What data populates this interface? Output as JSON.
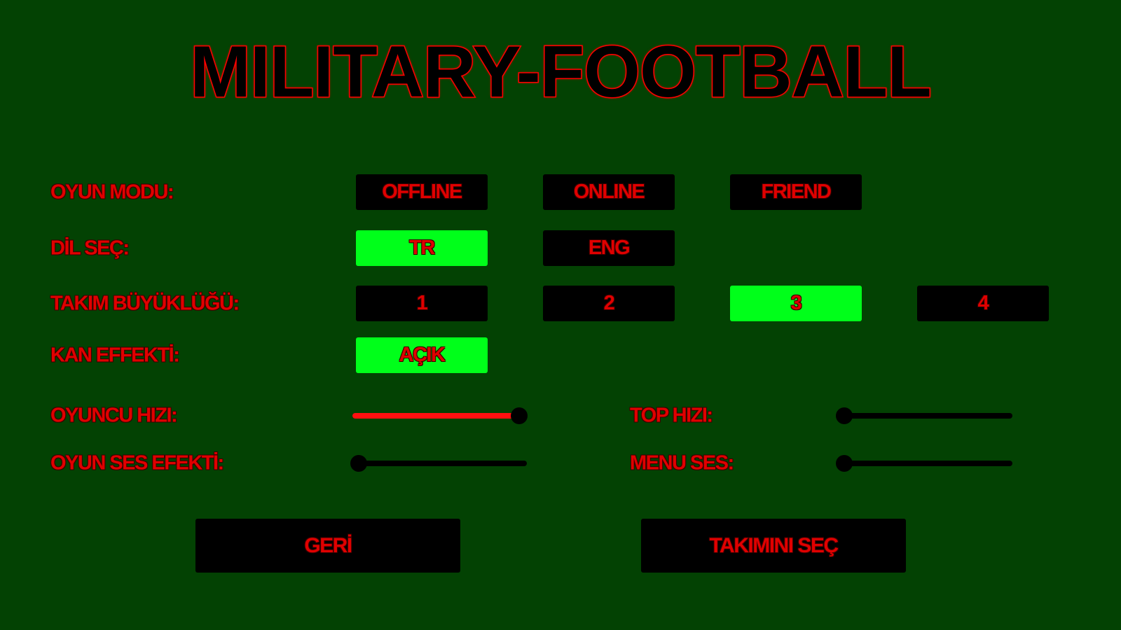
{
  "title": "MILITARY-FOOTBALL",
  "colors": {
    "background": "#034203",
    "selected": "#00ff1a",
    "text": "#e00000",
    "button": "#000000"
  },
  "rows": {
    "game_mode": {
      "label": "OYUN MODU:",
      "options": [
        "OFFLINE",
        "ONLINE",
        "FRIEND"
      ],
      "selected": null
    },
    "language": {
      "label": "DİL SEÇ:",
      "options": [
        "TR",
        "ENG"
      ],
      "selected": "TR"
    },
    "team_size": {
      "label": "TAKIM BÜYÜKLÜĞÜ:",
      "options": [
        "1",
        "2",
        "3",
        "4"
      ],
      "selected": "3"
    },
    "blood_effect": {
      "label": "KAN EFFEKTİ:",
      "options": [
        "AÇIK"
      ],
      "selected": "AÇIK"
    }
  },
  "sliders": {
    "player_speed": {
      "label": "OYUNCU HIZI:",
      "value": 1.0
    },
    "ball_speed": {
      "label": "TOP HIZI:",
      "value": 0.0
    },
    "game_sfx": {
      "label": "OYUN SES EFEKTİ:",
      "value": 0.0
    },
    "menu_sound": {
      "label": "MENU SES:",
      "value": 0.0
    }
  },
  "buttons": {
    "back": "GERİ",
    "choose_team": "TAKIMINI SEÇ"
  }
}
